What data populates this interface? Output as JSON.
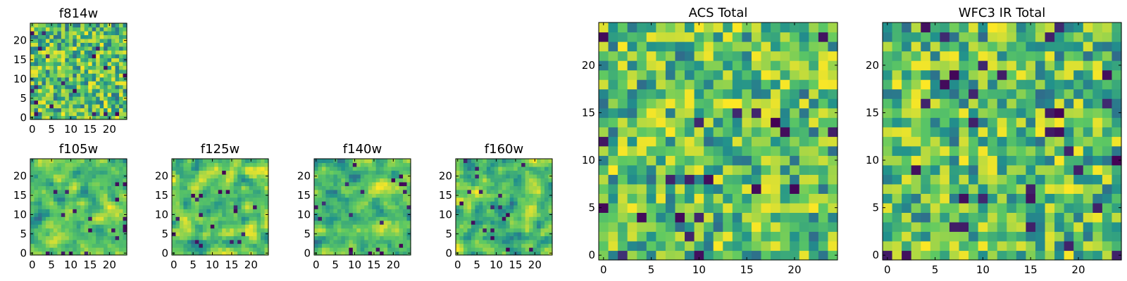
{
  "colormap": {
    "name": "viridis",
    "stops": [
      "#440154",
      "#3b528b",
      "#21918c",
      "#5ec962",
      "#fde725"
    ]
  },
  "chart_data": [
    {
      "id": "f814w",
      "type": "heatmap",
      "title": "f814w",
      "n": 25,
      "seed": 814,
      "smooth": 0,
      "xticks": [
        0,
        5,
        10,
        15,
        20
      ],
      "yticks": [
        0,
        5,
        10,
        15,
        20
      ],
      "xlim": [
        -0.5,
        24.5
      ],
      "ylim": [
        -0.5,
        24.5
      ],
      "vrange": [
        0,
        1
      ]
    },
    {
      "id": "f105w",
      "type": "heatmap",
      "title": "f105w",
      "n": 25,
      "seed": 105,
      "smooth": 1,
      "xticks": [
        0,
        5,
        10,
        15,
        20
      ],
      "yticks": [
        0,
        5,
        10,
        15,
        20
      ],
      "xlim": [
        -0.5,
        24.5
      ],
      "ylim": [
        -0.5,
        24.5
      ],
      "vrange": [
        0,
        1
      ]
    },
    {
      "id": "f125w",
      "type": "heatmap",
      "title": "f125w",
      "n": 25,
      "seed": 125,
      "smooth": 1,
      "xticks": [
        0,
        5,
        10,
        15,
        20
      ],
      "yticks": [
        0,
        5,
        10,
        15,
        20
      ],
      "xlim": [
        -0.5,
        24.5
      ],
      "ylim": [
        -0.5,
        24.5
      ],
      "vrange": [
        0,
        1
      ]
    },
    {
      "id": "f140w",
      "type": "heatmap",
      "title": "f140w",
      "n": 25,
      "seed": 140,
      "smooth": 1,
      "xticks": [
        0,
        5,
        10,
        15,
        20
      ],
      "yticks": [
        0,
        5,
        10,
        15,
        20
      ],
      "xlim": [
        -0.5,
        24.5
      ],
      "ylim": [
        -0.5,
        24.5
      ],
      "vrange": [
        0,
        1
      ]
    },
    {
      "id": "f160w",
      "type": "heatmap",
      "title": "f160w",
      "n": 25,
      "seed": 160,
      "smooth": 1,
      "xticks": [
        0,
        5,
        10,
        15,
        20
      ],
      "yticks": [
        0,
        5,
        10,
        15,
        20
      ],
      "xlim": [
        -0.5,
        24.5
      ],
      "ylim": [
        -0.5,
        24.5
      ],
      "vrange": [
        0,
        1
      ]
    },
    {
      "id": "acs_total",
      "type": "heatmap",
      "title": "ACS Total",
      "n": 25,
      "seed": 1001,
      "smooth": 0,
      "xticks": [
        0,
        5,
        10,
        15,
        20
      ],
      "yticks": [
        0,
        5,
        10,
        15,
        20
      ],
      "xlim": [
        -0.5,
        24.5
      ],
      "ylim": [
        -0.5,
        24.5
      ],
      "vrange": [
        0,
        1
      ]
    },
    {
      "id": "wfc3_ir_total",
      "type": "heatmap",
      "title": "WFC3 IR Total",
      "n": 25,
      "seed": 2002,
      "smooth": 0,
      "xticks": [
        0,
        5,
        10,
        15,
        20
      ],
      "yticks": [
        0,
        5,
        10,
        15,
        20
      ],
      "xlim": [
        -0.5,
        24.5
      ],
      "ylim": [
        -0.5,
        24.5
      ],
      "vrange": [
        0,
        1
      ]
    }
  ]
}
